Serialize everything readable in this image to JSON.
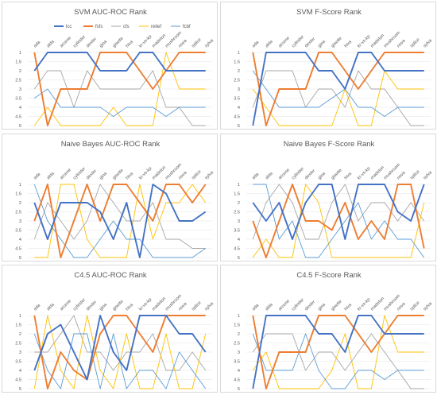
{
  "chart_data": [
    {
      "type": "line",
      "title": "SVM AUC-ROC Rank",
      "categories": [
        "ada",
        "alda",
        "arcene",
        "cylinder",
        "dexter",
        "gina",
        "gisette",
        "hiva",
        "kr-vs-kp",
        "madelon",
        "mushroom",
        "nova",
        "splice",
        "sylva"
      ],
      "ylim": [
        5,
        1
      ],
      "yticks": [
        "1",
        "1.5",
        "2",
        "2.5",
        "3",
        "3.5",
        "4",
        "4.5",
        "5"
      ],
      "legend": "top",
      "series": [
        {
          "name": "lcc",
          "color": "#4472c4",
          "values": [
            2,
            1,
            1,
            1,
            1,
            2,
            2,
            2,
            1,
            1,
            2,
            2,
            2,
            2
          ]
        },
        {
          "name": "fsfs",
          "color": "#ed7d31",
          "values": [
            1,
            5,
            3,
            3,
            3,
            1,
            1,
            1,
            2,
            3,
            2,
            1,
            1,
            1
          ]
        },
        {
          "name": "cfs",
          "color": "#a5a5a5",
          "values": [
            3,
            2,
            2,
            4,
            2,
            3,
            3,
            3,
            3,
            2,
            4,
            4,
            5,
            5
          ]
        },
        {
          "name": "relief",
          "color": "#ffc000",
          "values": [
            5,
            4,
            5,
            5,
            5,
            5,
            4,
            5,
            5,
            5,
            1,
            3,
            3,
            3
          ]
        },
        {
          "name": "fcbf",
          "color": "#5b9bd5",
          "values": [
            3.5,
            3,
            4,
            4,
            4,
            4,
            4.5,
            4,
            4,
            4,
            4.5,
            4,
            4,
            4
          ]
        }
      ]
    },
    {
      "type": "line",
      "title": "SVM F-Score Rank",
      "categories": [
        "ada",
        "alda",
        "arcene",
        "cylinder",
        "dexter",
        "gina",
        "gisette",
        "hiva",
        "kr-vs-kp",
        "madelon",
        "mushroom",
        "nova",
        "splice",
        "sylva"
      ],
      "ylim": [
        5,
        1
      ],
      "yticks": [
        "1",
        "1.5",
        "2",
        "2.5",
        "3",
        "3.5",
        "4",
        "4.5",
        "5"
      ],
      "series": [
        {
          "name": "lcc",
          "color": "#4472c4",
          "values": [
            5,
            1,
            1,
            1,
            1,
            2,
            2,
            3,
            1,
            1,
            2,
            2,
            2,
            2
          ]
        },
        {
          "name": "fsfs",
          "color": "#ed7d31",
          "values": [
            1,
            5,
            3,
            3,
            3,
            1,
            1,
            2,
            3,
            2,
            1,
            1,
            1,
            1
          ]
        },
        {
          "name": "cfs",
          "color": "#a5a5a5",
          "values": [
            4,
            2,
            2,
            2,
            4,
            3,
            3,
            4,
            2,
            3,
            3,
            4,
            5,
            5
          ]
        },
        {
          "name": "relief",
          "color": "#ffc000",
          "values": [
            3,
            4,
            5,
            5,
            5,
            5,
            5,
            3,
            5,
            5,
            2,
            3,
            3,
            3
          ]
        },
        {
          "name": "fcbf",
          "color": "#5b9bd5",
          "values": [
            2,
            3,
            4,
            4,
            4,
            4,
            3.5,
            3,
            4,
            4,
            4.5,
            4,
            4,
            4
          ]
        }
      ]
    },
    {
      "type": "line",
      "title": "Naive Bayes AUC-ROC Rank",
      "categories": [
        "ada",
        "alda",
        "arcene",
        "cylinder",
        "dexter",
        "gina",
        "gisette",
        "hiva",
        "kr-vs-kp",
        "madelon",
        "mushroom",
        "nova",
        "splice",
        "sylva"
      ],
      "ylim": [
        5,
        1
      ],
      "yticks": [
        "1",
        "1.5",
        "2",
        "2.5",
        "3",
        "3.5",
        "4",
        "4.5",
        "5"
      ],
      "series": [
        {
          "name": "lcc",
          "color": "#4472c4",
          "values": [
            2,
            4,
            2,
            2,
            2,
            2.5,
            4,
            2,
            5,
            1,
            1.5,
            3,
            3,
            2.5
          ]
        },
        {
          "name": "fsfs",
          "color": "#ed7d31",
          "values": [
            3,
            1,
            5,
            3,
            1,
            3,
            1,
            1,
            2,
            3,
            1,
            1,
            2,
            1
          ]
        },
        {
          "name": "cfs",
          "color": "#a5a5a5",
          "values": [
            4,
            2,
            3,
            4,
            3,
            1,
            2,
            3,
            3,
            2,
            4,
            4,
            4.5,
            4.5
          ]
        },
        {
          "name": "relief",
          "color": "#ffc000",
          "values": [
            5,
            5,
            1,
            1,
            4,
            5,
            5,
            5,
            1,
            4,
            2,
            2,
            1,
            2
          ]
        },
        {
          "name": "fcbf",
          "color": "#5b9bd5",
          "values": [
            1,
            3,
            4,
            5,
            5,
            4,
            3,
            4,
            4,
            5,
            5,
            5,
            5,
            4.5
          ]
        }
      ]
    },
    {
      "type": "line",
      "title": "Naive Bayes F-Score Rank",
      "categories": [
        "ada",
        "alda",
        "arcene",
        "cylinder",
        "dexter",
        "gina",
        "gisette",
        "hiva",
        "kr-vs-kp",
        "madelon",
        "mushroom",
        "nova",
        "splice",
        "sylva"
      ],
      "ylim": [
        5,
        1
      ],
      "yticks": [
        "1",
        "1.5",
        "2",
        "2.5",
        "3",
        "3.5",
        "4",
        "4.5",
        "5"
      ],
      "series": [
        {
          "name": "lcc",
          "color": "#4472c4",
          "values": [
            2,
            3,
            2,
            4,
            2,
            1,
            1,
            4,
            1,
            1,
            1,
            2.5,
            3,
            1
          ]
        },
        {
          "name": "fsfs",
          "color": "#ed7d31",
          "values": [
            3,
            5,
            3,
            1,
            3,
            3,
            3.5,
            2,
            4,
            3,
            4,
            1,
            1,
            4.5
          ]
        },
        {
          "name": "cfs",
          "color": "#a5a5a5",
          "values": [
            4,
            2,
            1,
            2,
            4,
            4,
            2,
            1,
            3,
            2,
            2,
            3,
            2,
            3
          ]
        },
        {
          "name": "relief",
          "color": "#ffc000",
          "values": [
            5,
            4,
            5,
            5,
            1,
            2,
            5,
            5,
            5,
            5,
            5,
            5,
            5,
            2
          ]
        },
        {
          "name": "fcbf",
          "color": "#5b9bd5",
          "values": [
            1,
            1,
            4,
            3,
            5,
            5,
            4,
            3,
            2,
            4,
            3,
            4,
            4,
            5
          ]
        }
      ]
    },
    {
      "type": "line",
      "title": "C4.5 AUC-ROC Rank",
      "categories": [
        "ada",
        "alda",
        "arcene",
        "cylinder",
        "dexter",
        "gina",
        "gisette",
        "hiva",
        "kr-vs-kp",
        "madelon",
        "mushroom",
        "nova",
        "splice",
        "sylva"
      ],
      "ylim": [
        5,
        1
      ],
      "yticks": [
        "1",
        "1.5",
        "2",
        "2.5",
        "3",
        "3.5",
        "4",
        "4.5",
        "5"
      ],
      "series": [
        {
          "name": "lcc",
          "color": "#4472c4",
          "values": [
            4,
            2,
            1.5,
            3,
            4.5,
            1,
            3,
            4,
            1,
            1,
            1,
            2,
            2,
            3
          ]
        },
        {
          "name": "fsfs",
          "color": "#ed7d31",
          "values": [
            1,
            5,
            3,
            4,
            4.5,
            2,
            1,
            1,
            2,
            3,
            1,
            1,
            1,
            1
          ]
        },
        {
          "name": "cfs",
          "color": "#a5a5a5",
          "values": [
            3,
            3,
            2,
            1,
            3,
            3,
            4,
            3,
            3,
            2,
            4,
            4,
            3,
            4
          ]
        },
        {
          "name": "relief",
          "color": "#ffc000",
          "values": [
            5,
            1,
            4,
            5,
            1,
            4,
            5,
            2,
            5,
            5,
            2,
            5,
            5,
            2
          ]
        },
        {
          "name": "fcbf",
          "color": "#5b9bd5",
          "values": [
            2,
            4,
            5,
            2,
            2,
            5,
            2,
            5,
            4,
            4,
            5,
            3,
            4,
            5
          ]
        }
      ]
    },
    {
      "type": "line",
      "title": "C4.5 F-Score Rank",
      "categories": [
        "ada",
        "alda",
        "arcene",
        "cylinder",
        "dexter",
        "gina",
        "gisette",
        "hiva",
        "kr-vs-kp",
        "madelon",
        "mushroom",
        "nova",
        "splice",
        "sylva"
      ],
      "ylim": [
        5,
        1
      ],
      "yticks": [
        "1",
        "1.5",
        "2",
        "2.5",
        "3",
        "3.5",
        "4",
        "4.5",
        "5"
      ],
      "series": [
        {
          "name": "lcc",
          "color": "#4472c4",
          "values": [
            5,
            1,
            1,
            1,
            1,
            2,
            2,
            3,
            1,
            1,
            2,
            2,
            2,
            2
          ]
        },
        {
          "name": "fsfs",
          "color": "#ed7d31",
          "values": [
            1,
            5,
            3,
            3,
            3,
            1,
            1,
            1,
            2,
            3,
            2,
            1,
            1,
            1
          ]
        },
        {
          "name": "cfs",
          "color": "#a5a5a5",
          "values": [
            3,
            2,
            2,
            2,
            4,
            3,
            3,
            4,
            3,
            2,
            3,
            4,
            5,
            5
          ]
        },
        {
          "name": "relief",
          "color": "#ffc000",
          "values": [
            4,
            3,
            5,
            5,
            5,
            5,
            4,
            2,
            5,
            5,
            1,
            3,
            3,
            3
          ]
        },
        {
          "name": "fcbf",
          "color": "#5b9bd5",
          "values": [
            2,
            4,
            4,
            4,
            2,
            4,
            5,
            5,
            4,
            4,
            4.5,
            4,
            4,
            4
          ]
        }
      ]
    }
  ]
}
